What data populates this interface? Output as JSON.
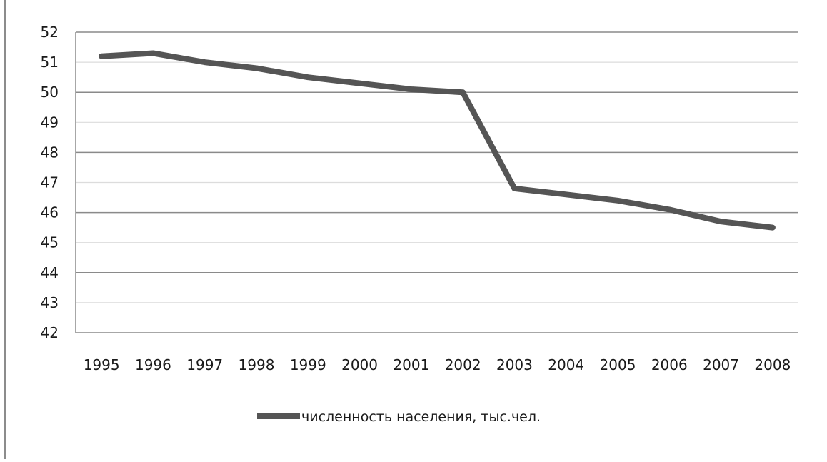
{
  "colors": {
    "line": "#555555",
    "grid_major": "#8a8a8a",
    "grid_minor": "#dcdcdc",
    "axis": "#8a8a8a",
    "text": "#1a1a1a"
  },
  "chart_data": {
    "type": "line",
    "title": "",
    "xlabel": "",
    "ylabel": "",
    "categories": [
      "1995",
      "1996",
      "1997",
      "1998",
      "1999",
      "2000",
      "2001",
      "2002",
      "2003",
      "2004",
      "2005",
      "2006",
      "2007",
      "2008"
    ],
    "ylim": [
      42,
      52
    ],
    "yticks": [
      42,
      43,
      44,
      45,
      46,
      47,
      48,
      49,
      50,
      51,
      52
    ],
    "grid": true,
    "legend_position": "bottom",
    "series": [
      {
        "name": "численность населения, тыс.чел.",
        "values": [
          51.2,
          51.3,
          51.0,
          50.8,
          50.5,
          50.3,
          50.1,
          50.0,
          46.8,
          46.6,
          46.4,
          46.1,
          45.7,
          45.5
        ]
      }
    ]
  }
}
